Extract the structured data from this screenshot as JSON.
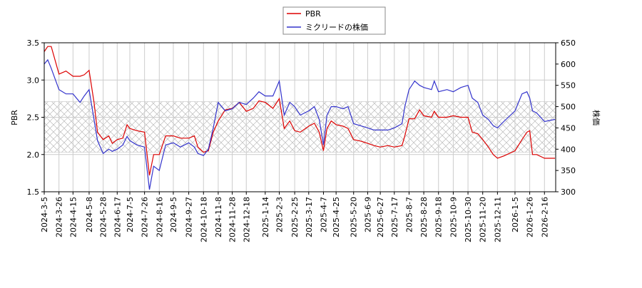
{
  "chart_data": {
    "type": "line",
    "x": [
      "2024-3-5",
      "2024-3-10",
      "2024-3-15",
      "2024-3-26",
      "2024-4-5",
      "2024-4-15",
      "2024-4-25",
      "2024-5-1",
      "2024-5-8",
      "2024-5-15",
      "2024-5-20",
      "2024-5-28",
      "2024-6-5",
      "2024-6-10",
      "2024-6-17",
      "2024-6-25",
      "2024-7-1",
      "2024-7-5",
      "2024-7-15",
      "2024-7-26",
      "2024-8-2",
      "2024-8-8",
      "2024-8-16",
      "2024-8-25",
      "2024-9-5",
      "2024-9-15",
      "2024-9-27",
      "2024-10-5",
      "2024-10-10",
      "2024-10-18",
      "2024-10-25",
      "2024-11-1",
      "2024-11-8",
      "2024-11-18",
      "2024-11-28",
      "2024-12-8",
      "2024-12-18",
      "2024-12-28",
      "2025-1-5",
      "2025-1-14",
      "2025-1-25",
      "2025-2-3",
      "2025-2-10",
      "2025-2-18",
      "2025-2-25",
      "2025-3-5",
      "2025-3-17",
      "2025-3-25",
      "2025-4-1",
      "2025-4-7",
      "2025-4-12",
      "2025-4-18",
      "2025-4-25",
      "2025-5-5",
      "2025-5-12",
      "2025-5-20",
      "2025-5-30",
      "2025-6-9",
      "2025-6-18",
      "2025-6-27",
      "2025-7-8",
      "2025-7-17",
      "2025-7-28",
      "2025-8-1",
      "2025-8-7",
      "2025-8-15",
      "2025-8-22",
      "2025-8-28",
      "2025-9-8",
      "2025-9-12",
      "2025-9-18",
      "2025-9-30",
      "2025-10-9",
      "2025-10-20",
      "2025-10-30",
      "2025-11-5",
      "2025-11-13",
      "2025-11-20",
      "2025-11-28",
      "2025-12-5",
      "2025-12-11",
      "2025-12-20",
      "2026-1-5",
      "2026-1-15",
      "2026-1-22",
      "2026-1-26",
      "2026-1-30",
      "2026-2-5",
      "2026-2-16",
      "2026-3-3"
    ],
    "series": [
      {
        "name": "PBR",
        "color": "#dd0000",
        "values": [
          3.38,
          3.45,
          3.45,
          3.08,
          3.12,
          3.05,
          3.05,
          3.07,
          3.13,
          2.7,
          2.3,
          2.2,
          2.25,
          2.15,
          2.2,
          2.22,
          2.4,
          2.35,
          2.32,
          2.3,
          1.72,
          2.0,
          2.0,
          2.25,
          2.25,
          2.22,
          2.22,
          2.25,
          2.1,
          2.03,
          2.05,
          2.3,
          2.45,
          2.6,
          2.62,
          2.7,
          2.58,
          2.62,
          2.72,
          2.7,
          2.62,
          2.75,
          2.35,
          2.45,
          2.32,
          2.3,
          2.38,
          2.42,
          2.3,
          2.05,
          2.35,
          2.45,
          2.4,
          2.38,
          2.35,
          2.2,
          2.18,
          2.15,
          2.12,
          2.1,
          2.12,
          2.1,
          2.12,
          2.25,
          2.48,
          2.48,
          2.6,
          2.52,
          2.5,
          2.58,
          2.5,
          2.5,
          2.52,
          2.5,
          2.5,
          2.3,
          2.28,
          2.2,
          2.1,
          2.0,
          1.95,
          1.98,
          2.05,
          2.2,
          2.3,
          2.32,
          2.0,
          2.0,
          1.95,
          1.95
        ]
      },
      {
        "name": "ミクリードの株価",
        "color": "#3333cc",
        "axis": "y2",
        "values": [
          600,
          610,
          590,
          540,
          530,
          530,
          510,
          525,
          540,
          470,
          420,
          390,
          400,
          395,
          400,
          410,
          430,
          420,
          410,
          405,
          305,
          360,
          350,
          410,
          415,
          405,
          415,
          405,
          390,
          385,
          400,
          450,
          510,
          490,
          495,
          510,
          505,
          520,
          535,
          525,
          525,
          560,
          480,
          510,
          500,
          480,
          490,
          500,
          470,
          410,
          480,
          500,
          500,
          495,
          500,
          460,
          455,
          450,
          445,
          445,
          445,
          450,
          460,
          500,
          540,
          560,
          550,
          545,
          540,
          560,
          535,
          540,
          535,
          545,
          550,
          520,
          510,
          480,
          470,
          455,
          450,
          465,
          490,
          530,
          535,
          520,
          490,
          485,
          465,
          470
        ]
      }
    ],
    "xlim": [
      "2024-3-5",
      "2026-3-4"
    ],
    "xticks": [
      "2024-3-5",
      "2024-3-26",
      "2024-4-15",
      "2024-5-8",
      "2024-5-28",
      "2024-6-17",
      "2024-7-5",
      "2024-7-26",
      "2024-8-16",
      "2024-9-5",
      "2024-9-27",
      "2024-10-18",
      "2024-11-8",
      "2024-11-28",
      "2024-12-18",
      "2025-1-14",
      "2025-2-3",
      "2025-2-25",
      "2025-3-17",
      "2025-4-7",
      "2025-4-25",
      "2025-5-20",
      "2025-6-9",
      "2025-6-27",
      "2025-7-17",
      "2025-8-7",
      "2025-8-28",
      "2025-9-18",
      "2025-10-9",
      "2025-10-30",
      "2025-11-20",
      "2025-12-11",
      "2026-1-5",
      "2026-1-26",
      "2026-2-16"
    ],
    "ylim": [
      1.5,
      3.5
    ],
    "yticks": [
      1.5,
      {
        "value": 2,
        "label": "2.0"
      },
      2.5,
      {
        "value": 3,
        "label": "3.0"
      },
      3.5
    ],
    "y2lim": [
      300,
      650
    ],
    "y2ticks": [
      300,
      350,
      400,
      450,
      500,
      550,
      600,
      650
    ],
    "ylabel": "PBR",
    "y2label": "株価",
    "shaded_range": [
      2.03,
      2.71
    ],
    "grid": true,
    "legend": "top"
  }
}
